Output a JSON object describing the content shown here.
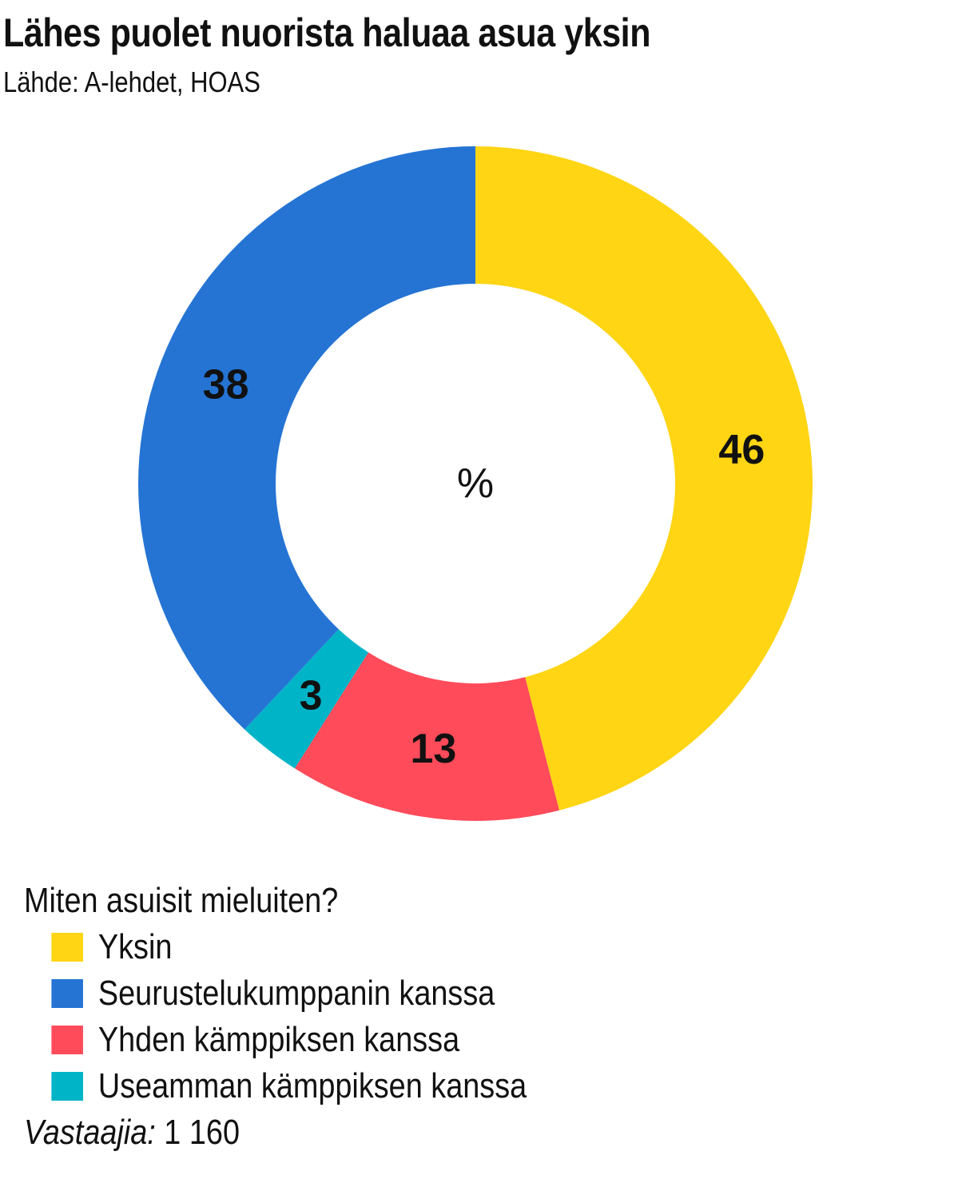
{
  "header": {
    "title": "Lähes puolet nuorista haluaa asua yksin",
    "source": "Lähde: A-lehdet, HOAS"
  },
  "chart_data": {
    "type": "pie",
    "donut": true,
    "title": "Lähes puolet nuorista haluaa asua yksin",
    "subtitle": "Lähde: A-lehdet, HOAS",
    "center_label": "%",
    "legend_title": "Miten asuisit mieluiten?",
    "legend_placement": "bottom-left",
    "start_angle_deg": 0,
    "direction": "clockwise",
    "slices": [
      {
        "label": "Yksin",
        "value": 46,
        "value_text": "46",
        "color": "#FFD514"
      },
      {
        "label": "Yhden kämppiksen kanssa",
        "value": 13,
        "value_text": "13",
        "color": "#FF4B5A"
      },
      {
        "label": "Useamman kämppiksen kanssa",
        "value": 3,
        "value_text": "3",
        "color": "#00B4C8"
      },
      {
        "label": "Seurustelukumppanin kanssa",
        "value": 38,
        "value_text": "38",
        "color": "#2574D4"
      }
    ],
    "legend_order": [
      "Yksin",
      "Seurustelukumppanin kanssa",
      "Yhden kämppiksen kanssa",
      "Useamman kämppiksen kanssa"
    ]
  },
  "legend": {
    "title": "Miten asuisit mieluiten?",
    "items": [
      {
        "label": "Yksin",
        "color": "#FFD514"
      },
      {
        "label": "Seurustelukumppanin kanssa",
        "color": "#2574D4"
      },
      {
        "label": "Yhden kämppiksen kanssa",
        "color": "#FF4B5A"
      },
      {
        "label": "Useamman kämppiksen kanssa",
        "color": "#00B4C8"
      }
    ]
  },
  "footer": {
    "respondents_label": "Vastaajia:",
    "respondents_value": "1 160"
  }
}
